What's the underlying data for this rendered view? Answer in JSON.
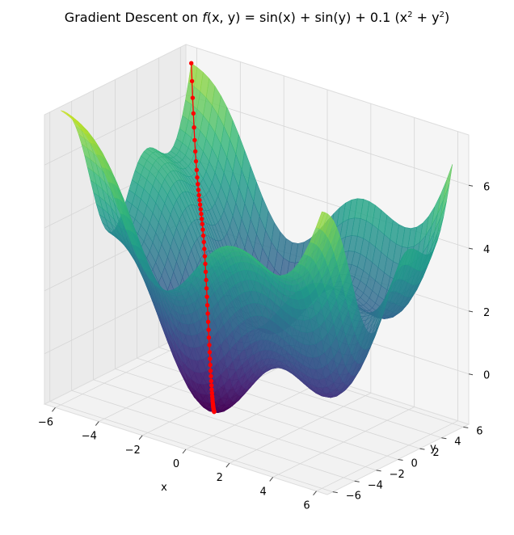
{
  "chart_data": {
    "type": "surface",
    "title": "Gradient Descent on f(x, y) = sin(x) + sin(y) + 0.1 (x² + y²)",
    "title_parts": {
      "prefix": "Gradient Descent on ",
      "f": "f",
      "args": "(x, y) = sin(x) + sin(y) + 0.1 (x",
      "sup1": "2",
      "plus": " + y",
      "sup2": "2",
      "close": ")"
    },
    "function": "sin(x) + sin(y) + 0.1*(x^2 + y^2)",
    "xlabel": "x",
    "ylabel": "y",
    "zlabel": "",
    "xlim": [
      -6.5,
      6.5
    ],
    "ylim": [
      -6.5,
      6.5
    ],
    "zlim": [
      -1.6,
      7.6
    ],
    "xticks": [
      "−6",
      "−4",
      "−2",
      "0",
      "2",
      "4",
      "6"
    ],
    "yticks": [
      "−6",
      "−4",
      "−2",
      "0",
      "2",
      "4",
      "6"
    ],
    "zticks": [
      "0",
      "2",
      "4",
      "6"
    ],
    "colormap": "viridis",
    "colors": {
      "path": "#ff0000",
      "pane": "#f2f2f2",
      "grid": "#d9d9d9"
    },
    "grid": true,
    "descent_path": {
      "marker": "red-dots",
      "start": [
        -6.0,
        6.0
      ],
      "end": [
        -1.3,
        -1.3
      ],
      "points": 60
    }
  }
}
